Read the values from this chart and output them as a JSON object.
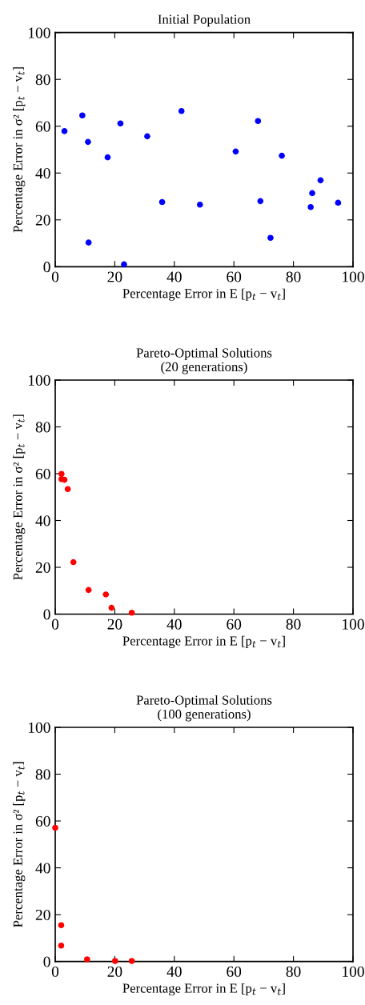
{
  "chart_data": [
    {
      "type": "scatter",
      "title": "Initial Population",
      "xlabel": "Percentage Error in E [p$_{t}$ − v$_{t}$]",
      "ylabel": "Percentage Error in σ² [p$_{t}$ − v$_{t}$]",
      "xlim": [
        0,
        100
      ],
      "ylim": [
        0,
        100
      ],
      "xticks": [
        0,
        20,
        40,
        60,
        80,
        100
      ],
      "yticks": [
        0,
        20,
        40,
        60,
        80,
        100
      ],
      "marker": "circle",
      "series": [
        {
          "color": "#0000ff",
          "x": [
            3.1,
            9.1,
            11.0,
            11.2,
            17.6,
            21.9,
            23.1,
            30.9,
            35.9,
            42.4,
            48.6,
            60.6,
            68.1,
            68.9,
            72.3,
            76.1,
            85.8,
            86.3,
            89.1,
            95.0
          ],
          "values": [
            57.9,
            64.6,
            53.3,
            10.3,
            46.7,
            61.2,
            1.0,
            55.7,
            27.6,
            66.5,
            26.5,
            49.2,
            62.2,
            28.0,
            12.3,
            47.4,
            25.5,
            31.4,
            36.9,
            27.3
          ]
        }
      ]
    },
    {
      "type": "scatter",
      "title": "Pareto-Optimal Solutions\n(20 generations)",
      "xlabel": "Percentage Error in E [p$_{t}$ − v$_{t}$]",
      "ylabel": "Percentage Error in σ² [p$_{t}$ − v$_{t}$]",
      "xlim": [
        0,
        100
      ],
      "ylim": [
        0,
        100
      ],
      "xticks": [
        0,
        20,
        40,
        60,
        80,
        100
      ],
      "yticks": [
        0,
        20,
        40,
        60,
        80,
        100
      ],
      "marker": "circle",
      "series": [
        {
          "color": "#ff0000",
          "x": [
            2.1,
            2.1,
            3.1,
            4.2,
            6.1,
            11.2,
            17.0,
            18.9,
            25.7
          ],
          "values": [
            59.9,
            57.7,
            57.4,
            53.4,
            22.2,
            10.3,
            8.4,
            2.7,
            0.6
          ]
        }
      ]
    },
    {
      "type": "scatter",
      "title": "Pareto-Optimal Solutions\n(100 generations)",
      "xlabel": "Percentage Error in E [p$_{t}$ − v$_{t}$]",
      "ylabel": "Percentage Error in σ² [p$_{t}$ − v$_{t}$]",
      "xlim": [
        0,
        100
      ],
      "ylim": [
        0,
        100
      ],
      "xticks": [
        0,
        20,
        40,
        60,
        80,
        100
      ],
      "yticks": [
        0,
        20,
        40,
        60,
        80,
        100
      ],
      "marker": "circle",
      "series": [
        {
          "color": "#ff0000",
          "x": [
            0,
            2.0,
            2.0,
            10.7,
            20.1,
            25.7
          ],
          "values": [
            57.1,
            15.5,
            6.8,
            0.9,
            0.2,
            0.2
          ]
        }
      ]
    }
  ]
}
